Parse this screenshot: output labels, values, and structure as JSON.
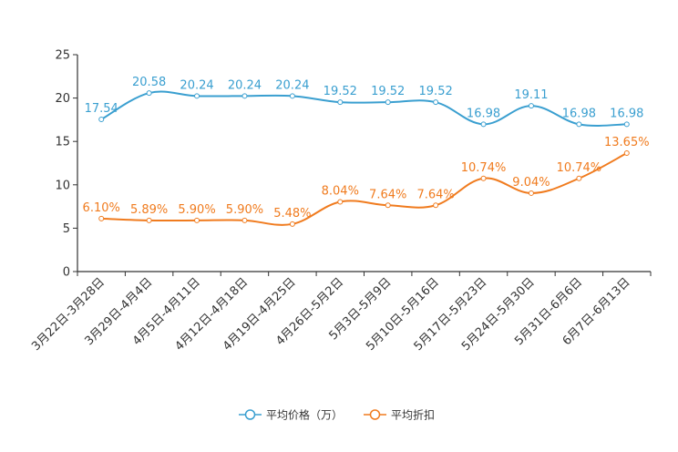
{
  "chart_data": {
    "type": "line",
    "title": "",
    "xlabel": "",
    "ylabel": "",
    "ylim": [
      0,
      25
    ],
    "yticks": [
      0,
      5,
      10,
      15,
      20,
      25
    ],
    "categories": [
      "3月22日-3月28日",
      "3月29日-4月4日",
      "4月5日-4月11日",
      "4月12日-4月18日",
      "4月19日-4月25日",
      "4月26日-5月2日",
      "5月3日-5月9日",
      "5月10日-5月16日",
      "5月17日-5月23日",
      "5月24日-5月30日",
      "5月31日-6月6日",
      "6月7日-6月13日"
    ],
    "series": [
      {
        "name": "平均价格（万）",
        "color": "#3a9fd0",
        "values": [
          17.54,
          20.58,
          20.24,
          20.24,
          20.24,
          19.52,
          19.52,
          19.52,
          16.98,
          19.11,
          16.98,
          16.98
        ],
        "labels": [
          "17.54",
          "20.58",
          "20.24",
          "20.24",
          "20.24",
          "19.52",
          "19.52",
          "19.52",
          "16.98",
          "19.11",
          "16.98",
          "16.98"
        ]
      },
      {
        "name": "平均折扣",
        "color": "#f07b1e",
        "values": [
          6.1,
          5.89,
          5.9,
          5.9,
          5.48,
          8.04,
          7.64,
          7.64,
          10.74,
          9.04,
          10.74,
          13.65
        ],
        "labels": [
          "6.10%",
          "5.89%",
          "5.90%",
          "5.90%",
          "5.48%",
          "8.04%",
          "7.64%",
          "7.64%",
          "10.74%",
          "9.04%",
          "10.74%",
          "13.65%"
        ]
      }
    ],
    "legend_position": "bottom-center",
    "grid": false
  }
}
